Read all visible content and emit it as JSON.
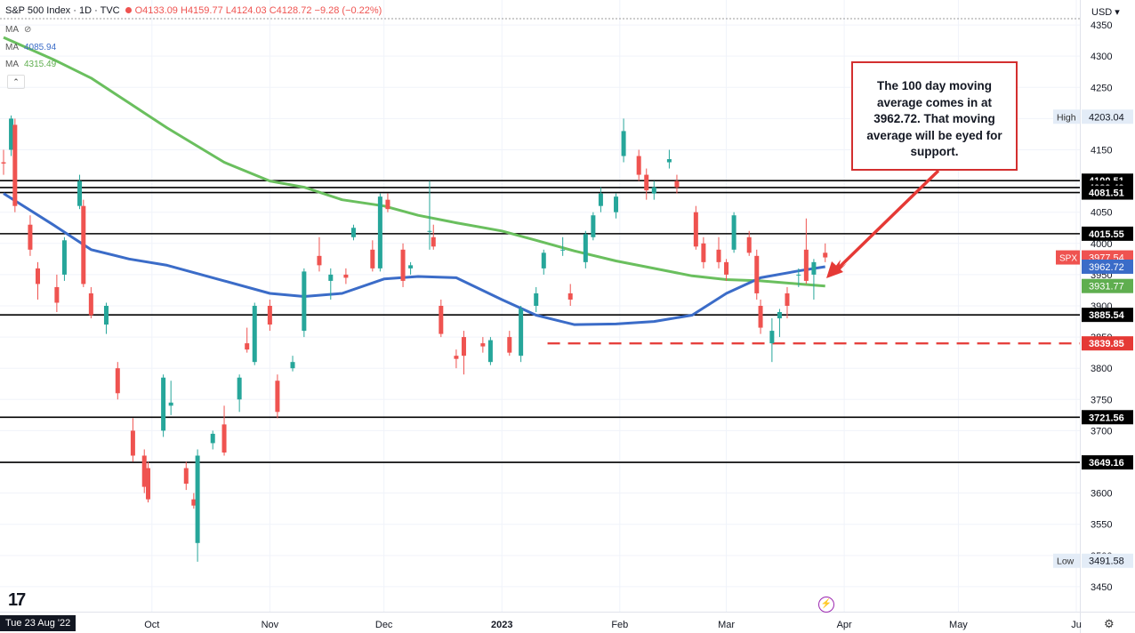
{
  "header": {
    "symbol": "S&P 500 Index · 1D · TVC",
    "open": "O4133.09",
    "high": "H4159.77",
    "low": "L4124.03",
    "close": "C4128.72",
    "change": "−9.28 (−0.22%)"
  },
  "indicators": [
    {
      "label": "MA",
      "value": "",
      "color": "#555555"
    },
    {
      "label": "MA",
      "value": "4085.94",
      "color": "#3b6cc8"
    },
    {
      "label": "MA",
      "value": "4315.49",
      "color": "#5fae4f"
    }
  ],
  "currency": "USD",
  "annotation": "The 100 day moving average comes in at 3962.72. That moving average will be eyed for support.",
  "footer": {
    "date_label": "Tue 23 Aug '22"
  },
  "colors": {
    "up": "#26a69a",
    "down": "#ef5350",
    "ma100": "#3b6cc8",
    "ma200": "#6abf5e",
    "support_dashed": "#e53935"
  },
  "chart_data": {
    "type": "candlestick",
    "title": "S&P 500 Index · 1D · TVC",
    "ylim": [
      3410,
      4390
    ],
    "y_ticks": [
      3450,
      3500,
      3550,
      3600,
      3650,
      3700,
      3750,
      3800,
      3850,
      3900,
      3950,
      4000,
      4050,
      4100,
      4150,
      4200,
      4250,
      4300,
      4350
    ],
    "x_ticks": [
      {
        "label": "Oct",
        "date": "2022-10-01"
      },
      {
        "label": "Nov",
        "date": "2022-11-01"
      },
      {
        "label": "Dec",
        "date": "2022-12-01"
      },
      {
        "label": "2023",
        "date": "2023-01-01",
        "bold": true
      },
      {
        "label": "Feb",
        "date": "2023-02-01"
      },
      {
        "label": "Mar",
        "date": "2023-03-01"
      },
      {
        "label": "Apr",
        "date": "2023-04-01"
      },
      {
        "label": "May",
        "date": "2023-05-01"
      },
      {
        "label": "Ju",
        "date": "2023-06-01"
      }
    ],
    "xlim": [
      "2022-08-23",
      "2023-06-01"
    ],
    "horizontal_levels": [
      {
        "value": 4100.51,
        "label": "4100.51",
        "style": "solid",
        "color": "#000000"
      },
      {
        "value": 4089.49,
        "label": "4089.49",
        "style": "solid",
        "color": "#000000"
      },
      {
        "value": 4081.51,
        "label": "4081.51",
        "style": "solid",
        "color": "#000000"
      },
      {
        "value": 4015.55,
        "label": "4015.55",
        "style": "solid",
        "color": "#000000"
      },
      {
        "value": 3885.54,
        "label": "3885.54",
        "style": "solid",
        "color": "#000000"
      },
      {
        "value": 3839.85,
        "label": "3839.85",
        "style": "dashed",
        "color": "#e53935"
      },
      {
        "value": 3721.56,
        "label": "3721.56",
        "style": "solid",
        "color": "#000000"
      },
      {
        "value": 3649.16,
        "label": "3649.16",
        "style": "solid",
        "color": "#000000"
      }
    ],
    "price_labels": [
      {
        "value": 3977.54,
        "label": "3977.54",
        "tag": "SPX",
        "color": "#ef5350"
      },
      {
        "value": 3962.72,
        "label": "3962.72",
        "color": "#3b6cc8"
      },
      {
        "value": 3931.77,
        "label": "3931.77",
        "color": "#5fae4f"
      }
    ],
    "high": {
      "label": "High",
      "value": "4203.04"
    },
    "low": {
      "label": "Low",
      "value": "3491.58"
    },
    "ma100": [
      [
        "2022-08-23",
        4080
      ],
      [
        "2022-09-05",
        4030
      ],
      [
        "2022-09-15",
        3990
      ],
      [
        "2022-09-25",
        3975
      ],
      [
        "2022-10-05",
        3965
      ],
      [
        "2022-10-20",
        3940
      ],
      [
        "2022-11-01",
        3920
      ],
      [
        "2022-11-10",
        3915
      ],
      [
        "2022-11-20",
        3920
      ],
      [
        "2022-12-01",
        3943
      ],
      [
        "2022-12-10",
        3947
      ],
      [
        "2022-12-20",
        3945
      ],
      [
        "2023-01-01",
        3910
      ],
      [
        "2023-01-10",
        3885
      ],
      [
        "2023-01-20",
        3870
      ],
      [
        "2023-01-31",
        3871
      ],
      [
        "2023-02-10",
        3875
      ],
      [
        "2023-02-20",
        3885
      ],
      [
        "2023-03-01",
        3920
      ],
      [
        "2023-03-10",
        3945
      ],
      [
        "2023-03-20",
        3956
      ],
      [
        "2023-03-27",
        3962.72
      ]
    ],
    "ma200": [
      [
        "2022-08-23",
        4330
      ],
      [
        "2022-09-05",
        4295
      ],
      [
        "2022-09-15",
        4265
      ],
      [
        "2022-09-25",
        4225
      ],
      [
        "2022-10-05",
        4185
      ],
      [
        "2022-10-20",
        4130
      ],
      [
        "2022-11-01",
        4100
      ],
      [
        "2022-11-10",
        4090
      ],
      [
        "2022-11-20",
        4070
      ],
      [
        "2022-12-01",
        4060
      ],
      [
        "2022-12-10",
        4045
      ],
      [
        "2022-12-20",
        4033
      ],
      [
        "2023-01-01",
        4020
      ],
      [
        "2023-01-10",
        4005
      ],
      [
        "2023-01-20",
        3988
      ],
      [
        "2023-01-31",
        3972
      ],
      [
        "2023-02-10",
        3960
      ],
      [
        "2023-02-20",
        3948
      ],
      [
        "2023-03-01",
        3942
      ],
      [
        "2023-03-10",
        3940
      ],
      [
        "2023-03-20",
        3935
      ],
      [
        "2023-03-27",
        3931.77
      ]
    ],
    "candles": [
      [
        "2022-08-23",
        4130,
        4150,
        4110,
        4128
      ],
      [
        "2022-08-25",
        4150,
        4205,
        4140,
        4200
      ],
      [
        "2022-08-26",
        4190,
        4200,
        4050,
        4060
      ],
      [
        "2022-08-30",
        4030,
        4045,
        3980,
        3990
      ],
      [
        "2022-09-01",
        3960,
        3970,
        3910,
        3935
      ],
      [
        "2022-09-06",
        3930,
        3950,
        3890,
        3905
      ],
      [
        "2022-09-08",
        3950,
        4010,
        3940,
        4005
      ],
      [
        "2022-09-12",
        4060,
        4110,
        4055,
        4100
      ],
      [
        "2022-09-13",
        4060,
        4070,
        3930,
        3935
      ],
      [
        "2022-09-15",
        3920,
        3930,
        3880,
        3885
      ],
      [
        "2022-09-19",
        3870,
        3905,
        3855,
        3900
      ],
      [
        "2022-09-22",
        3800,
        3810,
        3750,
        3760
      ],
      [
        "2022-09-26",
        3700,
        3720,
        3650,
        3660
      ],
      [
        "2022-09-29",
        3660,
        3670,
        3600,
        3610
      ],
      [
        "2022-09-30",
        3640,
        3650,
        3585,
        3590
      ],
      [
        "2022-10-04",
        3700,
        3790,
        3690,
        3785
      ],
      [
        "2022-10-06",
        3740,
        3780,
        3725,
        3745
      ],
      [
        "2022-10-10",
        3640,
        3650,
        3605,
        3615
      ],
      [
        "2022-10-12",
        3590,
        3600,
        3575,
        3580
      ],
      [
        "2022-10-13",
        3520,
        3670,
        3490,
        3660
      ],
      [
        "2022-10-17",
        3680,
        3700,
        3670,
        3695
      ],
      [
        "2022-10-20",
        3710,
        3740,
        3660,
        3665
      ],
      [
        "2022-10-24",
        3750,
        3790,
        3730,
        3785
      ],
      [
        "2022-10-26",
        3840,
        3865,
        3825,
        3830
      ],
      [
        "2022-10-28",
        3810,
        3905,
        3805,
        3900
      ],
      [
        "2022-11-01",
        3900,
        3910,
        3860,
        3870
      ],
      [
        "2022-11-03",
        3780,
        3790,
        3720,
        3730
      ],
      [
        "2022-11-07",
        3800,
        3820,
        3795,
        3810
      ],
      [
        "2022-11-10",
        3860,
        3960,
        3850,
        3955
      ],
      [
        "2022-11-14",
        3980,
        4010,
        3955,
        3965
      ],
      [
        "2022-11-17",
        3940,
        3960,
        3910,
        3950
      ],
      [
        "2022-11-21",
        3950,
        3960,
        3935,
        3945
      ],
      [
        "2022-11-23",
        4010,
        4030,
        4005,
        4025
      ],
      [
        "2022-11-28",
        3990,
        4005,
        3955,
        3960
      ],
      [
        "2022-11-30",
        3960,
        4080,
        3955,
        4075
      ],
      [
        "2022-12-02",
        4070,
        4080,
        4050,
        4055
      ],
      [
        "2022-12-06",
        3990,
        4000,
        3930,
        3940
      ],
      [
        "2022-12-08",
        3960,
        3970,
        3950,
        3965
      ],
      [
        "2022-12-13",
        4020,
        4100,
        3990,
        4020
      ],
      [
        "2022-12-14",
        4010,
        4030,
        3990,
        3995
      ],
      [
        "2022-12-16",
        3900,
        3910,
        3850,
        3855
      ],
      [
        "2022-12-20",
        3820,
        3830,
        3800,
        3815
      ],
      [
        "2022-12-22",
        3850,
        3860,
        3790,
        3820
      ],
      [
        "2022-12-27",
        3840,
        3850,
        3825,
        3835
      ],
      [
        "2022-12-29",
        3810,
        3850,
        3805,
        3845
      ],
      [
        "2023-01-03",
        3850,
        3860,
        3820,
        3825
      ],
      [
        "2023-01-06",
        3820,
        3900,
        3810,
        3895
      ],
      [
        "2023-01-10",
        3900,
        3930,
        3890,
        3920
      ],
      [
        "2023-01-12",
        3960,
        3990,
        3950,
        3985
      ],
      [
        "2023-01-17",
        3990,
        4010,
        3980,
        3990
      ],
      [
        "2023-01-19",
        3920,
        3935,
        3900,
        3910
      ],
      [
        "2023-01-23",
        3970,
        4020,
        3960,
        4015
      ],
      [
        "2023-01-25",
        4010,
        4050,
        4005,
        4045
      ],
      [
        "2023-01-27",
        4060,
        4090,
        4050,
        4080
      ],
      [
        "2023-01-31",
        4050,
        4080,
        4040,
        4075
      ],
      [
        "2023-02-02",
        4140,
        4200,
        4130,
        4180
      ],
      [
        "2023-02-06",
        4140,
        4150,
        4100,
        4110
      ],
      [
        "2023-02-08",
        4110,
        4120,
        4070,
        4085
      ],
      [
        "2023-02-10",
        4080,
        4100,
        4070,
        4090
      ],
      [
        "2023-02-14",
        4130,
        4150,
        4120,
        4135
      ],
      [
        "2023-02-16",
        4100,
        4110,
        4080,
        4090
      ],
      [
        "2023-02-21",
        4050,
        4060,
        3990,
        3995
      ],
      [
        "2023-02-23",
        4000,
        4010,
        3960,
        3970
      ],
      [
        "2023-02-27",
        3990,
        4010,
        3960,
        3970
      ],
      [
        "2023-03-01",
        3970,
        3975,
        3940,
        3950
      ],
      [
        "2023-03-03",
        3990,
        4050,
        3985,
        4045
      ],
      [
        "2023-03-07",
        4010,
        4020,
        3980,
        3985
      ],
      [
        "2023-03-09",
        3980,
        3990,
        3910,
        3920
      ],
      [
        "2023-03-10",
        3900,
        3910,
        3855,
        3865
      ],
      [
        "2023-03-13",
        3840,
        3880,
        3810,
        3860
      ],
      [
        "2023-03-15",
        3880,
        3895,
        3850,
        3890
      ],
      [
        "2023-03-17",
        3920,
        3930,
        3880,
        3900
      ],
      [
        "2023-03-20",
        3950,
        3960,
        3930,
        3950
      ],
      [
        "2023-03-22",
        3990,
        4040,
        3935,
        3940
      ],
      [
        "2023-03-24",
        3950,
        3975,
        3910,
        3970
      ],
      [
        "2023-03-27",
        3985,
        4000,
        3970,
        3977.54
      ]
    ]
  }
}
